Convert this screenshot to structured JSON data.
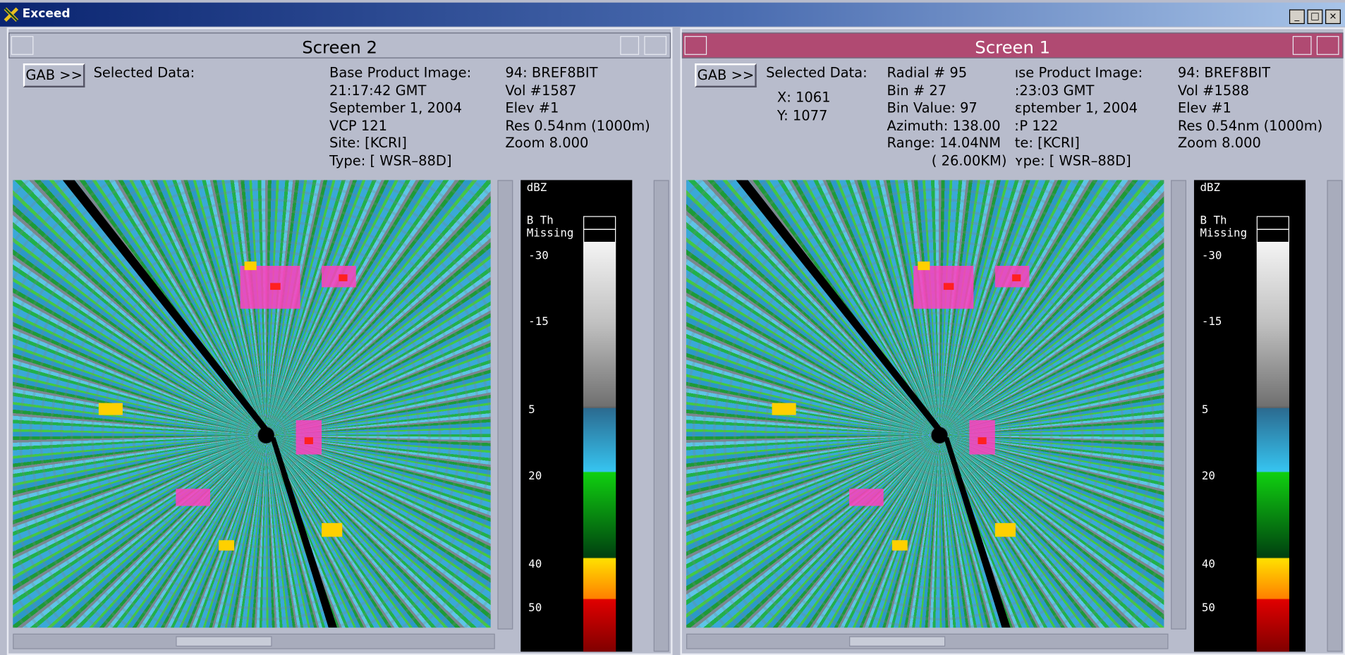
{
  "window": {
    "title": "Exceed"
  },
  "screens": [
    {
      "title": "Screen 2",
      "button": "GAB >>",
      "selected_label": "Selected Data:",
      "info_left": [
        "Base Product Image:",
        "21:17:42 GMT",
        "September 1, 2004",
        "VCP 121",
        "Site: [KCRI]",
        "Type: [ WSR–88D]"
      ],
      "info_right": [
        "94: BREF8BIT",
        "Vol #1587",
        "Elev #1",
        "Res  0.54nm (1000m)",
        "Zoom 8.000"
      ],
      "legend": {
        "unit": "dBZ",
        "threshold": "B Th",
        "missing": "Missing",
        "labels": [
          "-30",
          "-15",
          "5",
          "20",
          "40",
          "50"
        ]
      }
    },
    {
      "title": "Screen 1",
      "button": "GAB >>",
      "selected_label": "Selected Data:",
      "selected": [
        "X: 1061",
        "Y: 1077"
      ],
      "radial": [
        "Radial # 95",
        "Bin # 27",
        "Bin Value: 97",
        "Azimuth: 138.00",
        "Range:  14.04NM",
        "( 26.00KM)"
      ],
      "info_left": [
        "ıse Product Image:",
        ":23:03 GMT",
        "ɛptember 1, 2004",
        "ːP 122",
        "te: [KCRI]",
        "ʏpe: [ WSR–88D]"
      ],
      "info_right": [
        "94: BREF8BIT",
        "Vol #1588",
        "Elev #1",
        "Res  0.54nm (1000m)",
        "Zoom 8.000"
      ],
      "legend": {
        "unit": "dBZ",
        "threshold": "B Th",
        "missing": "Missing",
        "labels": [
          "-30",
          "-15",
          "5",
          "20",
          "40",
          "50"
        ]
      }
    }
  ]
}
